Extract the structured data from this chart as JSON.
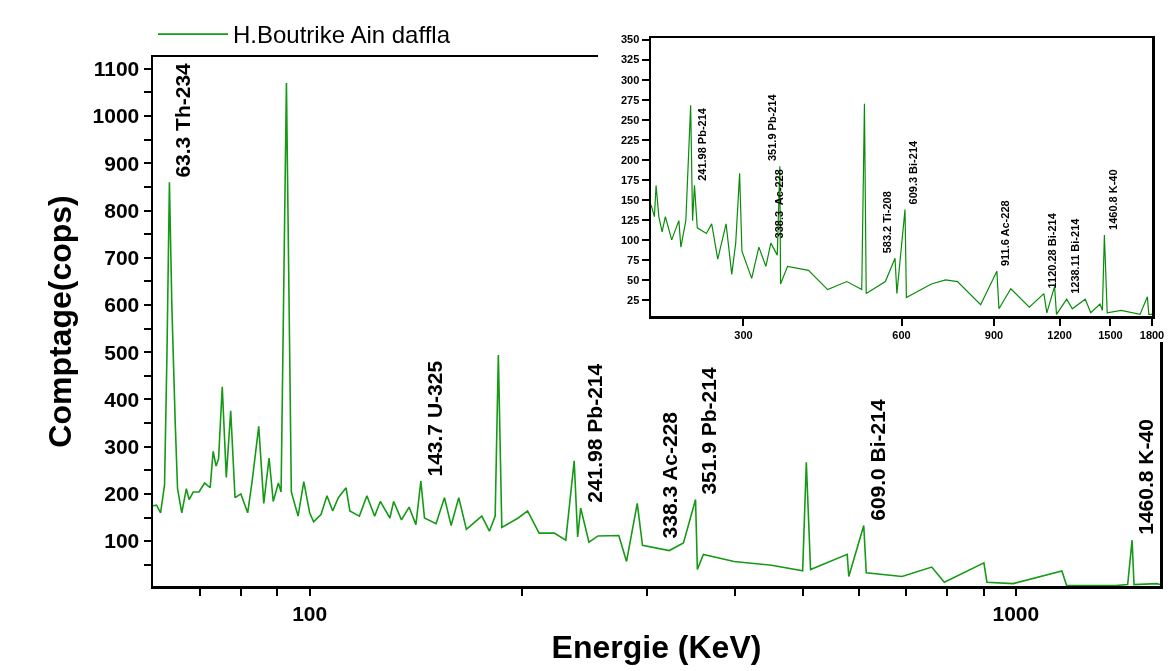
{
  "chart_data": [
    {
      "type": "line",
      "xlabel": "Energie (KeV)",
      "ylabel": "Comptage(cops)",
      "log": "x",
      "legend": "top left",
      "grid": false,
      "marker": "none",
      "line_style": "solid",
      "xlim": [
        60,
        1600
      ],
      "ylim": [
        5,
        1125
      ],
      "xticks": [
        {
          "value": 70,
          "label": null
        },
        {
          "value": 80,
          "label": null
        },
        {
          "value": 90,
          "label": null
        },
        100,
        {
          "value": 200,
          "label": null
        },
        {
          "value": 300,
          "label": null
        },
        {
          "value": 400,
          "label": null
        },
        {
          "value": 500,
          "label": null
        },
        {
          "value": 600,
          "label": null
        },
        {
          "value": 700,
          "label": null
        },
        {
          "value": 800,
          "label": null
        },
        {
          "value": 900,
          "label": null
        },
        1000
      ],
      "yticks": [
        {
          "value": 50,
          "label": null
        },
        100,
        {
          "value": 150,
          "label": null
        },
        200,
        {
          "value": 250,
          "label": null
        },
        300,
        {
          "value": 350,
          "label": null
        },
        400,
        {
          "value": 450,
          "label": null
        },
        500,
        {
          "value": 550,
          "label": null
        },
        600,
        {
          "value": 650,
          "label": null
        },
        700,
        {
          "value": 750,
          "label": null
        },
        800,
        {
          "value": 850,
          "label": null
        },
        900,
        {
          "value": 950,
          "label": null
        },
        1000,
        {
          "value": 1050,
          "label": null
        },
        1100
      ],
      "series": [
        {
          "name": "H.Boutrike Ain daffla",
          "color": "#169a16",
          "x": [
            60,
            60.7,
            61.5,
            62.3,
            62.8,
            63.3,
            63.8,
            64.5,
            65,
            65.9,
            66.9,
            67.5,
            68.4,
            69.7,
            71,
            72.3,
            73,
            73.7,
            74.3,
            75.2,
            76.2,
            77.3,
            78.4,
            79.9,
            81.7,
            82.9,
            84.7,
            86.1,
            87.6,
            88.8,
            90.3,
            91.1,
            92.7,
            94.2,
            96.3,
            98.1,
            100,
            101.3,
            103.8,
            105.8,
            107.8,
            109.8,
            112.6,
            114,
            117.6,
            120.5,
            123.6,
            125.9,
            129.9,
            131.5,
            134.9,
            138.3,
            141.4,
            143.7,
            145.4,
            151,
            155.2,
            158.6,
            162.6,
            166.7,
            175.3,
            179.7,
            183.1,
            185,
            187.1,
            197.4,
            203.5,
            211.3,
            222,
            230.5,
            236.9,
            239.6,
            241.98,
            248.6,
            256,
            274,
            281,
            291,
            296,
            323,
            338.3,
            351.9,
            354,
            361,
            399,
            451,
            499,
            505,
            512,
            577,
            580,
            609,
            614,
            690,
            760,
            792,
            901,
            910,
            991,
            1162,
            1180,
            1385,
            1440,
            1460.8,
            1470,
            1584,
            1600
          ],
          "values": [
            175,
            176,
            160,
            219,
            500,
            860,
            600,
            353,
            211,
            160,
            211,
            188,
            204,
            204,
            223,
            213,
            290,
            259,
            274,
            427,
            235,
            376,
            192,
            200,
            160,
            227,
            343,
            180,
            276,
            184,
            223,
            204,
            1070,
            204,
            153,
            226,
            160,
            141,
            157,
            196,
            164,
            192,
            213,
            164,
            153,
            196,
            153,
            184,
            149,
            184,
            145,
            172,
            135,
            227,
            149,
            137,
            192,
            133,
            192,
            125,
            153,
            121,
            153,
            494,
            129,
            149,
            164,
            117,
            117,
            102,
            270,
            109,
            170,
            98,
            111,
            112,
            57,
            180,
            91,
            80,
            96,
            188,
            40,
            72,
            57,
            49,
            37,
            267,
            40,
            72,
            25,
            133,
            33,
            25,
            45,
            13,
            54,
            13,
            10,
            37,
            6,
            6,
            8,
            102,
            8,
            10,
            8
          ]
        }
      ],
      "annotations": [
        {
          "text": "63.3 Th-234",
          "x": 63.3,
          "y": 860
        },
        {
          "text": "143.7 U-325",
          "x": 143.7,
          "y": 227
        },
        {
          "text": "241.98 Pb-214",
          "x": 241.98,
          "y": 170
        },
        {
          "text": "338.3 Ac-228",
          "x": 338.3,
          "y": 96
        },
        {
          "text": "351.9 Pb-214",
          "x": 351.9,
          "y": 188
        },
        {
          "text": "609.0 Bi-214",
          "x": 609,
          "y": 133
        },
        {
          "text": "1460.8 K-40",
          "x": 1460.8,
          "y": 102
        }
      ]
    },
    {
      "type": "line",
      "log": "x",
      "legend": false,
      "grid": false,
      "marker": "none",
      "line_style": "solid",
      "xlim": [
        200,
        1800
      ],
      "ylim": [
        5,
        352
      ],
      "xticks": [
        300,
        600,
        900,
        1200,
        1500,
        1800
      ],
      "yticks": [
        25,
        50,
        75,
        100,
        125,
        150,
        175,
        200,
        225,
        250,
        275,
        300,
        325,
        350
      ],
      "series": [
        {
          "color": "#0a8c0a",
          "x": [
            200,
            203,
            204.5,
            207,
            210,
            213,
            219,
            226,
            228,
            233,
            238,
            240,
            242,
            245,
            255,
            261,
            268,
            278,
            285,
            290,
            295,
            298,
            311,
            321,
            331,
            338.3,
            348,
            351.9,
            353,
            364,
            399,
            434,
            472,
            504,
            510,
            514,
            559,
            583.2,
            588,
            609.3,
            613,
            684,
            728,
            767,
            849,
            911.6,
            920,
            969,
            1051,
            1120.28,
            1135,
            1174,
            1184,
            1238.11,
            1269,
            1343,
            1376,
            1433,
            1448,
            1460.8,
            1479,
            1572,
            1708,
            1764,
            1775,
            1800
          ],
          "values": [
            144,
            129,
            168,
            129,
            110,
            129,
            100,
            124,
            91,
            124,
            268,
            124,
            168,
            115,
            108,
            120,
            76,
            120,
            57,
            96,
            183,
            86,
            52,
            91,
            67,
            96,
            81,
            192,
            45,
            67,
            62,
            38,
            48,
            38,
            270,
            33,
            48,
            77,
            33,
            138,
            28,
            45,
            50,
            48,
            19,
            61,
            14,
            39,
            16,
            33,
            9,
            42,
            7,
            26,
            14,
            26,
            9,
            20,
            12,
            106,
            9,
            12,
            7,
            29,
            7,
            7
          ]
        }
      ],
      "annotations": [
        {
          "text": "241.98 Pb-214",
          "x": 241.98,
          "y": 168
        },
        {
          "text": "351.9 Pb-214",
          "x": 351.9,
          "y": 192
        },
        {
          "text": "338.3  Ac-228",
          "x": 338.3,
          "y": 96
        },
        {
          "text": "583.2 Ti-208",
          "x": 583.2,
          "y": 77
        },
        {
          "text": "609.3 Bi-214",
          "x": 609.3,
          "y": 138
        },
        {
          "text": "911.6 Ac-228",
          "x": 911.6,
          "y": 61
        },
        {
          "text": "1120.28 Bi-214",
          "x": 1120.28,
          "y": 33
        },
        {
          "text": "1238.11 Bi-214",
          "x": 1238.11,
          "y": 26
        },
        {
          "text": "1460.8 K-40",
          "x": 1460.8,
          "y": 106
        }
      ]
    }
  ]
}
